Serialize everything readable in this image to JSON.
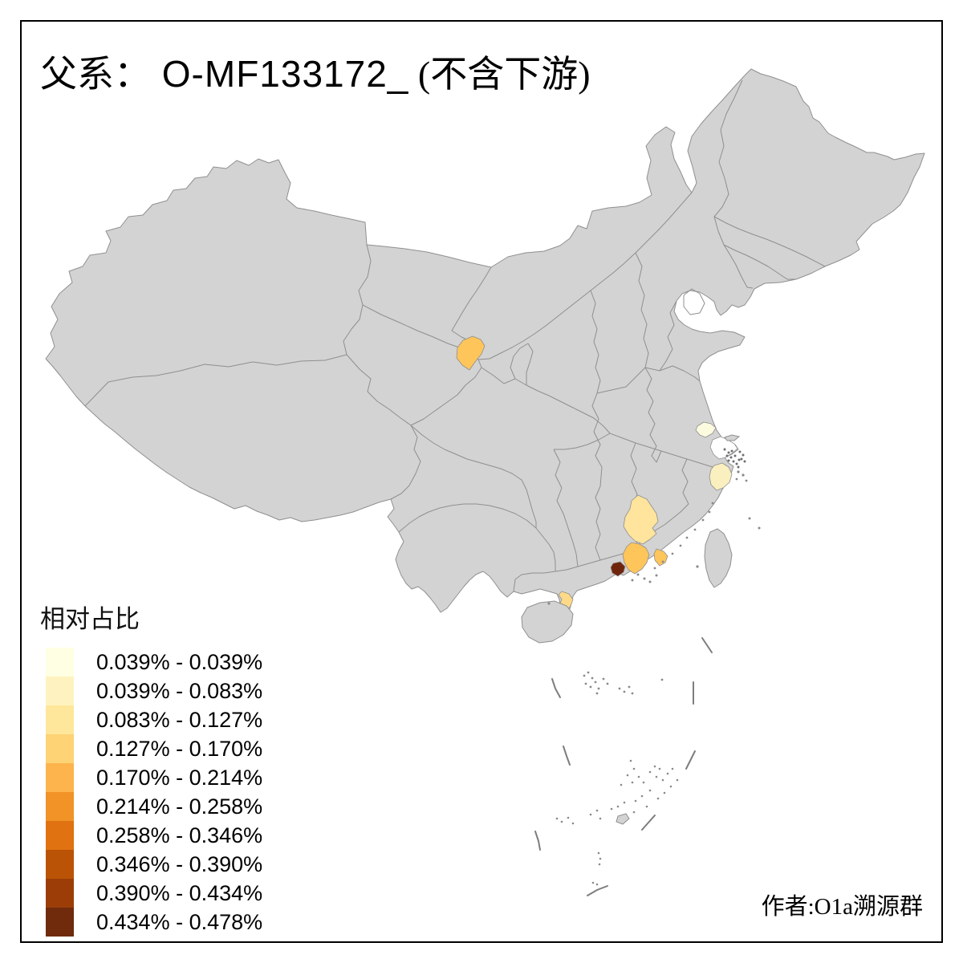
{
  "title": {
    "prefix": "父系：",
    "code": "  O-MF133172_",
    "suffix": " (不含下游)"
  },
  "legend": {
    "title": "相对占比",
    "items": [
      {
        "color": "#FFFFE3",
        "label": "0.039% - 0.039%"
      },
      {
        "color": "#FEF3C0",
        "label": "0.039% - 0.083%"
      },
      {
        "color": "#FEE79B",
        "label": "0.083% - 0.127%"
      },
      {
        "color": "#FDD375",
        "label": "0.127% - 0.170%"
      },
      {
        "color": "#FDB44D",
        "label": "0.170% - 0.214%"
      },
      {
        "color": "#F19327",
        "label": "0.214% - 0.258%"
      },
      {
        "color": "#E07211",
        "label": "0.258% - 0.346%"
      },
      {
        "color": "#BB5306",
        "label": "0.346% - 0.390%"
      },
      {
        "color": "#9C3D08",
        "label": "0.390% - 0.434%"
      },
      {
        "color": "#702B0D",
        "label": "0.434% - 0.478%"
      }
    ]
  },
  "attribution": "作者:O1a溯源群",
  "map": {
    "land_fill": "#D3D3D3",
    "border_color": "#8F8F8F",
    "background": "#FFFFFF",
    "shanghai_area_fill": "#FFFFFF",
    "regions": {
      "central-gansu": {
        "color": "#FDC55A"
      },
      "southern-jiangsu": {
        "color": "#FCFADF"
      },
      "coastal-zhejiang": {
        "color": "#FAEFBE"
      },
      "western-fujian": {
        "color": "#FEE49C"
      },
      "northeastern-guangdong": {
        "color": "#FDC55A"
      },
      "eastern-guangdong": {
        "color": "#FDC55A"
      },
      "western-guangdong": {
        "color": "#6F250C"
      },
      "leizhou-peninsula": {
        "color": "#FDD988"
      }
    }
  }
}
